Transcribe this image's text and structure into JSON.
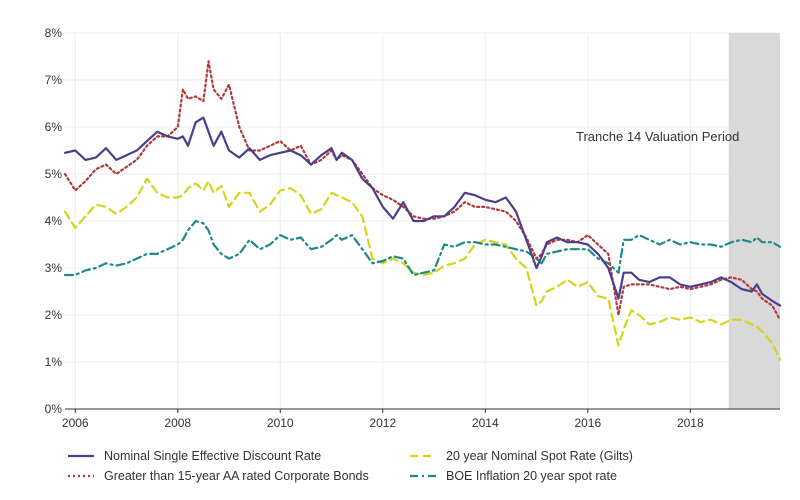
{
  "chart_data": {
    "type": "line",
    "title": "",
    "xlabel": "",
    "ylabel": "",
    "xlim": [
      2005.8,
      2019.75
    ],
    "ylim": [
      0,
      8
    ],
    "y_ticks": [
      "0%",
      "1%",
      "2%",
      "3%",
      "4%",
      "5%",
      "6%",
      "7%",
      "8%"
    ],
    "x_ticks": [
      "2006",
      "2008",
      "2010",
      "2012",
      "2014",
      "2016",
      "2018"
    ],
    "grid": true,
    "legend_position": "bottom",
    "shaded_region": {
      "x_start": 2018.75,
      "x_end": 2019.75,
      "label": "Tranche 14 Valuation Period"
    },
    "colors": {
      "nominal": "#4b3f8a",
      "corporate": "#b23a3a",
      "gilts": "#d4d41e",
      "inflation": "#1f8a8a",
      "shade": "#d9d9d9"
    },
    "series": [
      {
        "name": "Nominal Single Effective Discount Rate",
        "style": "solid",
        "x": [
          2005.8,
          2006.0,
          2006.2,
          2006.4,
          2006.6,
          2006.8,
          2007.0,
          2007.2,
          2007.4,
          2007.6,
          2007.8,
          2008.0,
          2008.1,
          2008.2,
          2008.35,
          2008.5,
          2008.6,
          2008.7,
          2008.85,
          2009.0,
          2009.2,
          2009.4,
          2009.6,
          2009.8,
          2010.0,
          2010.2,
          2010.4,
          2010.6,
          2010.8,
          2011.0,
          2011.1,
          2011.2,
          2011.4,
          2011.6,
          2011.8,
          2012.0,
          2012.2,
          2012.4,
          2012.6,
          2012.8,
          2013.0,
          2013.2,
          2013.4,
          2013.6,
          2013.8,
          2014.0,
          2014.2,
          2014.4,
          2014.6,
          2014.8,
          2015.0,
          2015.1,
          2015.2,
          2015.4,
          2015.6,
          2015.8,
          2016.0,
          2016.2,
          2016.4,
          2016.6,
          2016.7,
          2016.85,
          2017.0,
          2017.2,
          2017.4,
          2017.6,
          2017.8,
          2018.0,
          2018.2,
          2018.4,
          2018.6,
          2018.8,
          2019.0,
          2019.2,
          2019.3,
          2019.4,
          2019.6,
          2019.75
        ],
        "values": [
          5.45,
          5.5,
          5.3,
          5.35,
          5.55,
          5.3,
          5.4,
          5.5,
          5.7,
          5.9,
          5.8,
          5.75,
          5.8,
          5.6,
          6.1,
          6.2,
          5.9,
          5.6,
          5.9,
          5.5,
          5.35,
          5.55,
          5.3,
          5.4,
          5.45,
          5.5,
          5.4,
          5.2,
          5.4,
          5.55,
          5.3,
          5.45,
          5.3,
          4.9,
          4.7,
          4.3,
          4.05,
          4.4,
          4.0,
          4.0,
          4.1,
          4.1,
          4.3,
          4.6,
          4.55,
          4.45,
          4.4,
          4.5,
          4.2,
          3.6,
          3.0,
          3.25,
          3.55,
          3.65,
          3.55,
          3.55,
          3.5,
          3.3,
          3.0,
          2.35,
          2.9,
          2.9,
          2.75,
          2.7,
          2.8,
          2.8,
          2.65,
          2.6,
          2.65,
          2.7,
          2.8,
          2.7,
          2.55,
          2.5,
          2.65,
          2.45,
          2.3,
          2.2
        ]
      },
      {
        "name": "Greater than 15-year AA rated Corporate Bonds",
        "style": "dotted",
        "x": [
          2005.8,
          2006.0,
          2006.2,
          2006.4,
          2006.6,
          2006.8,
          2007.0,
          2007.2,
          2007.4,
          2007.6,
          2007.8,
          2008.0,
          2008.1,
          2008.2,
          2008.35,
          2008.5,
          2008.6,
          2008.7,
          2008.85,
          2009.0,
          2009.2,
          2009.4,
          2009.6,
          2009.8,
          2010.0,
          2010.2,
          2010.4,
          2010.6,
          2010.8,
          2011.0,
          2011.1,
          2011.2,
          2011.4,
          2011.6,
          2011.8,
          2012.0,
          2012.2,
          2012.4,
          2012.6,
          2012.8,
          2013.0,
          2013.2,
          2013.4,
          2013.6,
          2013.8,
          2014.0,
          2014.2,
          2014.4,
          2014.6,
          2014.8,
          2015.0,
          2015.1,
          2015.2,
          2015.4,
          2015.6,
          2015.8,
          2016.0,
          2016.2,
          2016.4,
          2016.6,
          2016.7,
          2016.85,
          2017.0,
          2017.2,
          2017.4,
          2017.6,
          2017.8,
          2018.0,
          2018.2,
          2018.4,
          2018.6,
          2018.8,
          2019.0,
          2019.2,
          2019.3,
          2019.4,
          2019.6,
          2019.75
        ],
        "values": [
          5.0,
          4.65,
          4.85,
          5.1,
          5.2,
          5.0,
          5.15,
          5.3,
          5.6,
          5.8,
          5.8,
          6.0,
          6.8,
          6.6,
          6.65,
          6.55,
          7.4,
          6.8,
          6.6,
          6.9,
          6.0,
          5.5,
          5.5,
          5.6,
          5.7,
          5.5,
          5.6,
          5.2,
          5.3,
          5.5,
          5.3,
          5.4,
          5.3,
          5.0,
          4.7,
          4.55,
          4.45,
          4.3,
          4.1,
          4.05,
          4.05,
          4.1,
          4.2,
          4.4,
          4.3,
          4.3,
          4.25,
          4.2,
          4.0,
          3.65,
          3.2,
          3.3,
          3.5,
          3.6,
          3.6,
          3.55,
          3.7,
          3.5,
          3.3,
          2.0,
          2.6,
          2.65,
          2.65,
          2.65,
          2.6,
          2.55,
          2.6,
          2.55,
          2.6,
          2.65,
          2.75,
          2.8,
          2.75,
          2.55,
          2.5,
          2.35,
          2.2,
          1.9
        ]
      },
      {
        "name": "20 year Nominal Spot Rate (Gilts)",
        "style": "dashed",
        "x": [
          2005.8,
          2006.0,
          2006.2,
          2006.4,
          2006.6,
          2006.8,
          2007.0,
          2007.2,
          2007.4,
          2007.6,
          2007.8,
          2008.0,
          2008.1,
          2008.2,
          2008.35,
          2008.5,
          2008.6,
          2008.7,
          2008.85,
          2009.0,
          2009.2,
          2009.4,
          2009.6,
          2009.8,
          2010.0,
          2010.2,
          2010.4,
          2010.6,
          2010.8,
          2011.0,
          2011.1,
          2011.2,
          2011.4,
          2011.6,
          2011.8,
          2012.0,
          2012.2,
          2012.4,
          2012.6,
          2012.8,
          2013.0,
          2013.2,
          2013.4,
          2013.6,
          2013.8,
          2014.0,
          2014.2,
          2014.4,
          2014.6,
          2014.8,
          2015.0,
          2015.1,
          2015.2,
          2015.4,
          2015.6,
          2015.8,
          2016.0,
          2016.2,
          2016.4,
          2016.6,
          2016.7,
          2016.85,
          2017.0,
          2017.2,
          2017.4,
          2017.6,
          2017.8,
          2018.0,
          2018.2,
          2018.4,
          2018.6,
          2018.8,
          2019.0,
          2019.2,
          2019.3,
          2019.4,
          2019.6,
          2019.75
        ],
        "values": [
          4.2,
          3.85,
          4.1,
          4.35,
          4.3,
          4.15,
          4.3,
          4.5,
          4.9,
          4.6,
          4.5,
          4.5,
          4.55,
          4.7,
          4.8,
          4.65,
          4.85,
          4.6,
          4.75,
          4.3,
          4.6,
          4.6,
          4.2,
          4.35,
          4.65,
          4.7,
          4.55,
          4.15,
          4.25,
          4.6,
          4.55,
          4.5,
          4.4,
          4.1,
          3.2,
          3.1,
          3.2,
          3.1,
          2.9,
          2.85,
          2.9,
          3.05,
          3.1,
          3.2,
          3.5,
          3.6,
          3.55,
          3.5,
          3.2,
          3.0,
          2.2,
          2.3,
          2.5,
          2.6,
          2.75,
          2.6,
          2.7,
          2.4,
          2.35,
          1.35,
          1.7,
          2.1,
          2.0,
          1.8,
          1.85,
          1.95,
          1.9,
          1.95,
          1.85,
          1.9,
          1.8,
          1.9,
          1.9,
          1.8,
          1.75,
          1.65,
          1.4,
          1.05
        ]
      },
      {
        "name": "BOE Inflation 20 year spot rate",
        "style": "dashdot",
        "x": [
          2005.8,
          2006.0,
          2006.2,
          2006.4,
          2006.6,
          2006.8,
          2007.0,
          2007.2,
          2007.4,
          2007.6,
          2007.8,
          2008.0,
          2008.1,
          2008.2,
          2008.35,
          2008.5,
          2008.6,
          2008.7,
          2008.85,
          2009.0,
          2009.2,
          2009.4,
          2009.6,
          2009.8,
          2010.0,
          2010.2,
          2010.4,
          2010.6,
          2010.8,
          2011.0,
          2011.1,
          2011.2,
          2011.4,
          2011.6,
          2011.8,
          2012.0,
          2012.2,
          2012.4,
          2012.6,
          2012.8,
          2013.0,
          2013.2,
          2013.4,
          2013.6,
          2013.8,
          2014.0,
          2014.2,
          2014.4,
          2014.6,
          2014.8,
          2015.0,
          2015.1,
          2015.2,
          2015.4,
          2015.6,
          2015.8,
          2016.0,
          2016.2,
          2016.4,
          2016.6,
          2016.7,
          2016.85,
          2017.0,
          2017.2,
          2017.4,
          2017.6,
          2017.8,
          2018.0,
          2018.2,
          2018.4,
          2018.6,
          2018.8,
          2019.0,
          2019.2,
          2019.3,
          2019.4,
          2019.6,
          2019.75
        ],
        "values": [
          2.85,
          2.85,
          2.95,
          3.0,
          3.1,
          3.05,
          3.1,
          3.2,
          3.3,
          3.3,
          3.4,
          3.5,
          3.6,
          3.8,
          4.0,
          3.95,
          3.8,
          3.5,
          3.3,
          3.2,
          3.3,
          3.6,
          3.4,
          3.5,
          3.7,
          3.6,
          3.65,
          3.4,
          3.45,
          3.6,
          3.7,
          3.6,
          3.7,
          3.4,
          3.1,
          3.15,
          3.25,
          3.2,
          2.85,
          2.9,
          2.95,
          3.5,
          3.45,
          3.55,
          3.55,
          3.5,
          3.5,
          3.45,
          3.4,
          3.35,
          3.2,
          3.1,
          3.3,
          3.35,
          3.4,
          3.4,
          3.4,
          3.2,
          3.1,
          2.9,
          3.6,
          3.6,
          3.7,
          3.6,
          3.5,
          3.6,
          3.5,
          3.55,
          3.5,
          3.5,
          3.45,
          3.55,
          3.6,
          3.55,
          3.65,
          3.55,
          3.55,
          3.45
        ]
      }
    ]
  }
}
